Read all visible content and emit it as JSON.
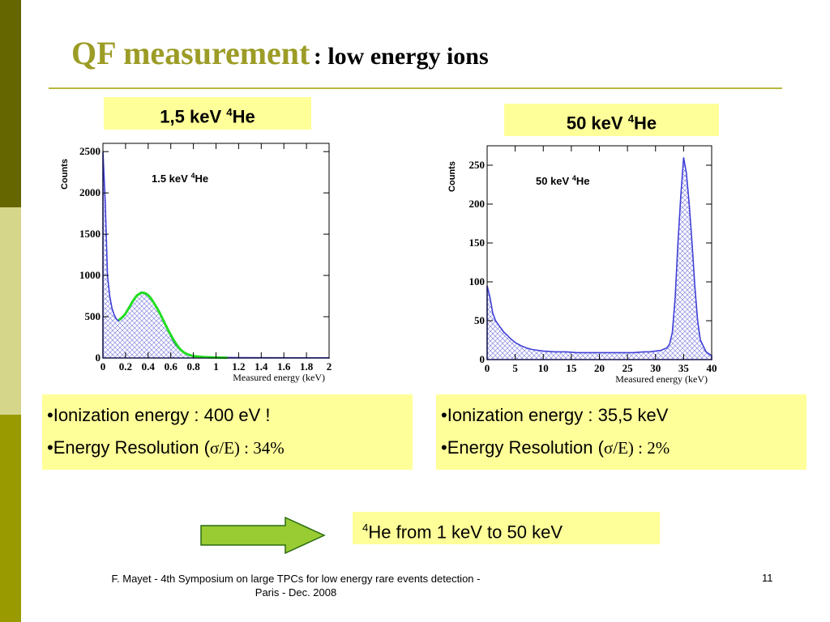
{
  "slide": {
    "title_main": "QF measurement",
    "title_sub": ": low energy ions",
    "colors": {
      "title": "#9c9c26",
      "sidebar_dark": "#666600",
      "sidebar_light": "#d6d68a",
      "sidebar_mid": "#999900",
      "box": "#ffff99",
      "arrow": "#99cc33",
      "hist": "#4040d8",
      "fit": "#22dd22"
    }
  },
  "left": {
    "label_a": "1,5 keV ",
    "label_sup": "4",
    "label_b": "He",
    "bullet1": "•Ionization energy : 400 eV !",
    "bullet2_a": "•Energy Resolution (",
    "bullet2_sigma": "σ",
    "bullet2_b": "/E) : 34%"
  },
  "right": {
    "label_a": "50 keV ",
    "label_sup": "4",
    "label_b": "He",
    "bullet1": "•Ionization energy : 35,5 keV",
    "bullet2_a": "•Energy Resolution (",
    "bullet2_sigma": "σ",
    "bullet2_b": "/E) : 2%"
  },
  "conclusion": {
    "sup": "4",
    "text": "He from 1 keV to 50 keV"
  },
  "footer": {
    "line1": "F. Mayet  - 4th Symposium on large TPCs  for low energy rare events detection -",
    "line2": "Paris - Dec. 2008",
    "page": "11"
  },
  "chart_data": [
    {
      "type": "histogram",
      "title_text": "1.5 keV ",
      "title_sup": "4",
      "title_tail": "He",
      "ylabel": "Counts",
      "xlabel": "Measured energy (keV)",
      "xlim": [
        0,
        2
      ],
      "ylim": [
        0,
        2600
      ],
      "xticks": [
        0,
        0.2,
        0.4,
        0.6,
        0.8,
        1,
        1.2,
        1.4,
        1.6,
        1.8,
        2
      ],
      "xtick_labels": [
        "0",
        "0.2",
        "0.4",
        "0.6",
        "0.8",
        "1",
        "1.2",
        "1.4",
        "1.6",
        "1.8",
        "2"
      ],
      "yticks": [
        0,
        500,
        1000,
        1500,
        2000,
        2500
      ],
      "ytick_labels": [
        "0",
        "500",
        "1000",
        "1500",
        "2000",
        "2500"
      ],
      "series": [
        {
          "x": [
            0.0,
            0.02,
            0.04,
            0.06,
            0.08,
            0.1,
            0.12,
            0.14,
            0.16,
            0.18,
            0.2,
            0.22,
            0.24,
            0.26,
            0.28,
            0.3,
            0.32,
            0.34,
            0.36,
            0.38,
            0.4,
            0.42,
            0.44,
            0.46,
            0.48,
            0.5,
            0.52,
            0.54,
            0.56,
            0.58,
            0.6,
            0.62,
            0.64,
            0.66,
            0.68,
            0.7,
            0.72,
            0.74,
            0.76,
            0.8,
            0.85,
            0.9,
            1.0,
            1.2,
            1.5,
            2.0
          ],
          "y": [
            2500,
            1900,
            1000,
            750,
            600,
            520,
            470,
            450,
            470,
            500,
            530,
            580,
            620,
            680,
            720,
            760,
            780,
            800,
            790,
            770,
            760,
            720,
            680,
            640,
            600,
            560,
            500,
            440,
            380,
            320,
            260,
            210,
            160,
            130,
            100,
            80,
            60,
            45,
            35,
            25,
            15,
            10,
            8,
            5,
            3,
            2
          ]
        }
      ],
      "fit": {
        "x": [
          0.14,
          0.16,
          0.18,
          0.2,
          0.22,
          0.24,
          0.26,
          0.28,
          0.3,
          0.32,
          0.34,
          0.36,
          0.38,
          0.4,
          0.42,
          0.44,
          0.46,
          0.48,
          0.5,
          0.52,
          0.54,
          0.56,
          0.58,
          0.6,
          0.62,
          0.64,
          0.66,
          0.68,
          0.7,
          0.72,
          0.74,
          0.76,
          0.78,
          0.8,
          0.85,
          0.9,
          1.0,
          1.1
        ],
        "y": [
          460,
          480,
          505,
          540,
          585,
          630,
          680,
          720,
          755,
          775,
          790,
          790,
          780,
          760,
          730,
          690,
          645,
          600,
          550,
          495,
          440,
          385,
          330,
          280,
          230,
          185,
          145,
          110,
          85,
          65,
          50,
          38,
          30,
          24,
          16,
          10,
          5,
          2
        ]
      }
    },
    {
      "type": "histogram",
      "title_text": "50 keV ",
      "title_sup": "4",
      "title_tail": "He",
      "ylabel": "Counts",
      "xlabel": "Measured energy (keV)",
      "xlim": [
        0,
        40
      ],
      "ylim": [
        0,
        275
      ],
      "xticks": [
        0,
        5,
        10,
        15,
        20,
        25,
        30,
        35,
        40
      ],
      "xtick_labels": [
        "0",
        "5",
        "10",
        "15",
        "20",
        "25",
        "30",
        "35",
        "40"
      ],
      "yticks": [
        0,
        50,
        100,
        150,
        200,
        250
      ],
      "ytick_labels": [
        "0",
        "50",
        "100",
        "150",
        "200",
        "250"
      ],
      "series": [
        {
          "x": [
            0.0,
            0.5,
            1,
            1.5,
            2,
            2.5,
            3,
            3.5,
            4,
            5,
            6,
            7,
            8,
            9,
            10,
            12,
            14,
            16,
            18,
            20,
            22,
            24,
            26,
            28,
            29,
            30,
            31,
            32,
            32.5,
            33,
            33.5,
            34,
            34.5,
            35,
            35.5,
            36,
            36.5,
            37,
            37.5,
            38,
            39,
            40
          ],
          "y": [
            95,
            80,
            60,
            50,
            45,
            40,
            35,
            32,
            28,
            22,
            18,
            15,
            13,
            12,
            11,
            10,
            10,
            9,
            9,
            9,
            9,
            9,
            9,
            10,
            10,
            11,
            12,
            15,
            20,
            35,
            80,
            150,
            210,
            260,
            240,
            200,
            150,
            95,
            50,
            25,
            10,
            5
          ]
        }
      ]
    }
  ]
}
